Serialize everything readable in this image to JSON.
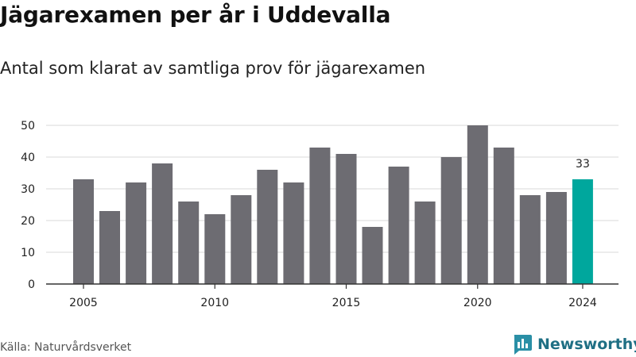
{
  "title": "Jägarexamen per år i Uddevalla",
  "subtitle": "Antal som klarat av samtliga prov för jägarexamen",
  "source": "Källa: Naturvårdsverket",
  "brand": {
    "name": "Newsworthy",
    "icon": "newsworthy-logo-icon",
    "color": "#1f6f84"
  },
  "colors": {
    "bar": "#6d6c72",
    "highlight": "#00a79d",
    "grid": "#d9d9d9",
    "axis": "#333333"
  },
  "chart_data": {
    "type": "bar",
    "title": "Jägarexamen per år i Uddevalla",
    "subtitle": "Antal som klarat av samtliga prov för jägarexamen",
    "xlabel": "",
    "ylabel": "",
    "categories": [
      2005,
      2006,
      2007,
      2008,
      2009,
      2010,
      2011,
      2012,
      2013,
      2014,
      2015,
      2016,
      2017,
      2018,
      2019,
      2020,
      2021,
      2022,
      2023,
      2024
    ],
    "values": [
      33,
      23,
      32,
      38,
      26,
      22,
      28,
      36,
      32,
      43,
      41,
      18,
      37,
      26,
      40,
      50,
      43,
      28,
      29,
      33
    ],
    "ylim": [
      0,
      50
    ],
    "yticks": [
      0,
      10,
      20,
      30,
      40,
      50
    ],
    "xticks": [
      2005,
      2010,
      2015,
      2020,
      2024
    ],
    "highlight_index": 19,
    "data_labels": [
      {
        "index": 19,
        "text": "33"
      }
    ],
    "grid": true,
    "legend": "none"
  }
}
